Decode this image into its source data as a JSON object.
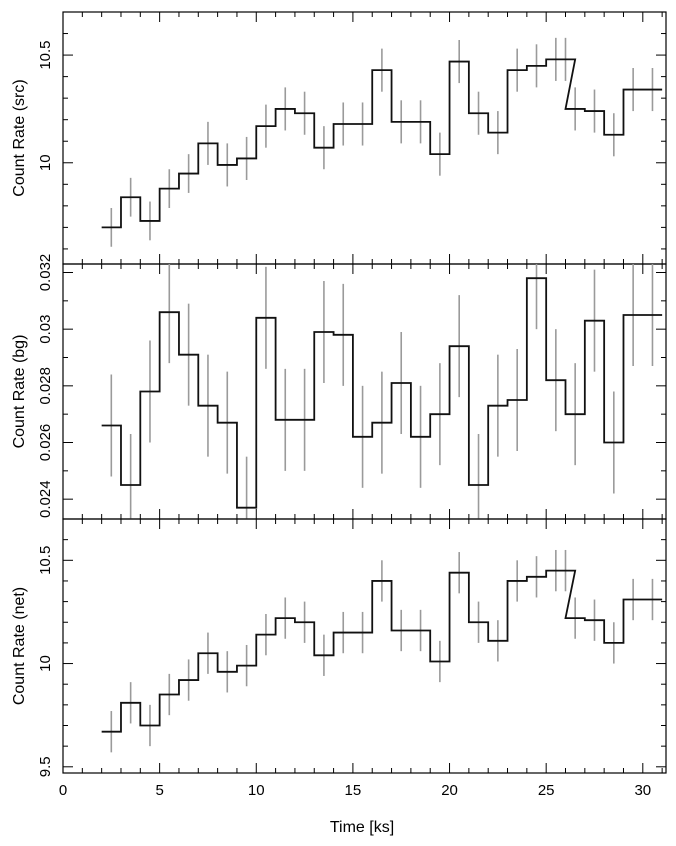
{
  "chart_data": [
    {
      "type": "line",
      "ylabel": "Count Rate (src)",
      "xlim": [
        0,
        31.2
      ],
      "ylim": [
        9.53,
        10.7
      ],
      "yticks": [
        10,
        10.5
      ],
      "ytick_labels": [
        "10",
        "10.5"
      ],
      "bin_width": 1.0,
      "x": [
        2.5,
        3.5,
        4.5,
        5.5,
        6.5,
        7.5,
        8.5,
        9.5,
        10.5,
        11.5,
        12.5,
        13.5,
        14.5,
        15.5,
        16.5,
        17.5,
        18.5,
        19.5,
        20.5,
        21.5,
        22.5,
        23.5,
        24.5,
        25.5,
        26.0,
        26.5,
        27.5,
        28.5,
        29.5,
        30.5
      ],
      "y": [
        9.7,
        9.84,
        9.73,
        9.88,
        9.95,
        10.09,
        9.99,
        10.02,
        10.17,
        10.25,
        10.23,
        10.07,
        10.18,
        10.18,
        10.43,
        10.19,
        10.19,
        10.04,
        10.47,
        10.23,
        10.14,
        10.43,
        10.45,
        10.48,
        10.48,
        10.25,
        10.24,
        10.13,
        10.34,
        10.34
      ],
      "err": [
        0.09,
        0.09,
        0.09,
        0.09,
        0.09,
        0.1,
        0.1,
        0.1,
        0.1,
        0.1,
        0.1,
        0.1,
        0.1,
        0.1,
        0.1,
        0.1,
        0.1,
        0.1,
        0.1,
        0.1,
        0.1,
        0.1,
        0.1,
        0.1,
        0.1,
        0.1,
        0.1,
        0.1,
        0.1,
        0.1
      ]
    },
    {
      "type": "line",
      "ylabel": "Count Rate (bg)",
      "xlim": [
        0,
        31.2
      ],
      "ylim": [
        0.0233,
        0.0323
      ],
      "yticks": [
        0.024,
        0.026,
        0.028,
        0.03,
        0.032
      ],
      "ytick_labels": [
        "0.024",
        "0.026",
        "0.028",
        "0.03",
        "0.032"
      ],
      "bin_width": 1.0,
      "x": [
        2.5,
        3.5,
        4.5,
        5.5,
        6.5,
        7.5,
        8.5,
        9.5,
        10.5,
        11.5,
        12.5,
        13.5,
        14.5,
        15.5,
        16.5,
        17.5,
        18.5,
        19.5,
        20.5,
        21.5,
        22.5,
        23.5,
        24.5,
        25.5,
        26.5,
        27.5,
        28.5,
        29.5,
        30.5
      ],
      "y": [
        0.0266,
        0.0245,
        0.0278,
        0.0306,
        0.0291,
        0.0273,
        0.0267,
        0.0237,
        0.0304,
        0.0268,
        0.0268,
        0.0299,
        0.0298,
        0.0262,
        0.0267,
        0.0281,
        0.0262,
        0.027,
        0.0294,
        0.0245,
        0.0273,
        0.0275,
        0.0318,
        0.0282,
        0.027,
        0.0303,
        0.026,
        0.0305,
        0.0305
      ],
      "err": [
        0.0018,
        0.0018,
        0.0018,
        0.0018,
        0.0018,
        0.0018,
        0.0018,
        0.0018,
        0.0018,
        0.0018,
        0.0018,
        0.0018,
        0.0018,
        0.0018,
        0.0018,
        0.0018,
        0.0018,
        0.0018,
        0.0018,
        0.0018,
        0.0018,
        0.0018,
        0.0018,
        0.0018,
        0.0018,
        0.0018,
        0.0018,
        0.0018,
        0.0018
      ]
    },
    {
      "type": "line",
      "ylabel": "Count Rate (net)",
      "xlabel": "Time [ks]",
      "xlim": [
        0,
        31.2
      ],
      "ylim": [
        9.47,
        10.7
      ],
      "yticks": [
        9.5,
        10,
        10.5
      ],
      "ytick_labels": [
        "9.5",
        "10",
        "10.5"
      ],
      "xticks": [
        0,
        5,
        10,
        15,
        20,
        25,
        30
      ],
      "xtick_labels": [
        "0",
        "5",
        "10",
        "15",
        "20",
        "25",
        "30"
      ],
      "bin_width": 1.0,
      "x": [
        2.5,
        3.5,
        4.5,
        5.5,
        6.5,
        7.5,
        8.5,
        9.5,
        10.5,
        11.5,
        12.5,
        13.5,
        14.5,
        15.5,
        16.5,
        17.5,
        18.5,
        19.5,
        20.5,
        21.5,
        22.5,
        23.5,
        24.5,
        25.5,
        26.0,
        26.5,
        27.5,
        28.5,
        29.5,
        30.5
      ],
      "y": [
        9.67,
        9.81,
        9.7,
        9.85,
        9.92,
        10.05,
        9.96,
        9.99,
        10.14,
        10.22,
        10.2,
        10.04,
        10.15,
        10.15,
        10.4,
        10.16,
        10.16,
        10.01,
        10.44,
        10.2,
        10.11,
        10.4,
        10.42,
        10.45,
        10.45,
        10.22,
        10.21,
        10.1,
        10.31,
        10.31
      ],
      "err": [
        0.1,
        0.1,
        0.1,
        0.1,
        0.1,
        0.1,
        0.1,
        0.1,
        0.1,
        0.1,
        0.1,
        0.1,
        0.1,
        0.1,
        0.1,
        0.1,
        0.1,
        0.1,
        0.1,
        0.1,
        0.1,
        0.1,
        0.1,
        0.1,
        0.1,
        0.1,
        0.1,
        0.1,
        0.1,
        0.1
      ]
    }
  ]
}
